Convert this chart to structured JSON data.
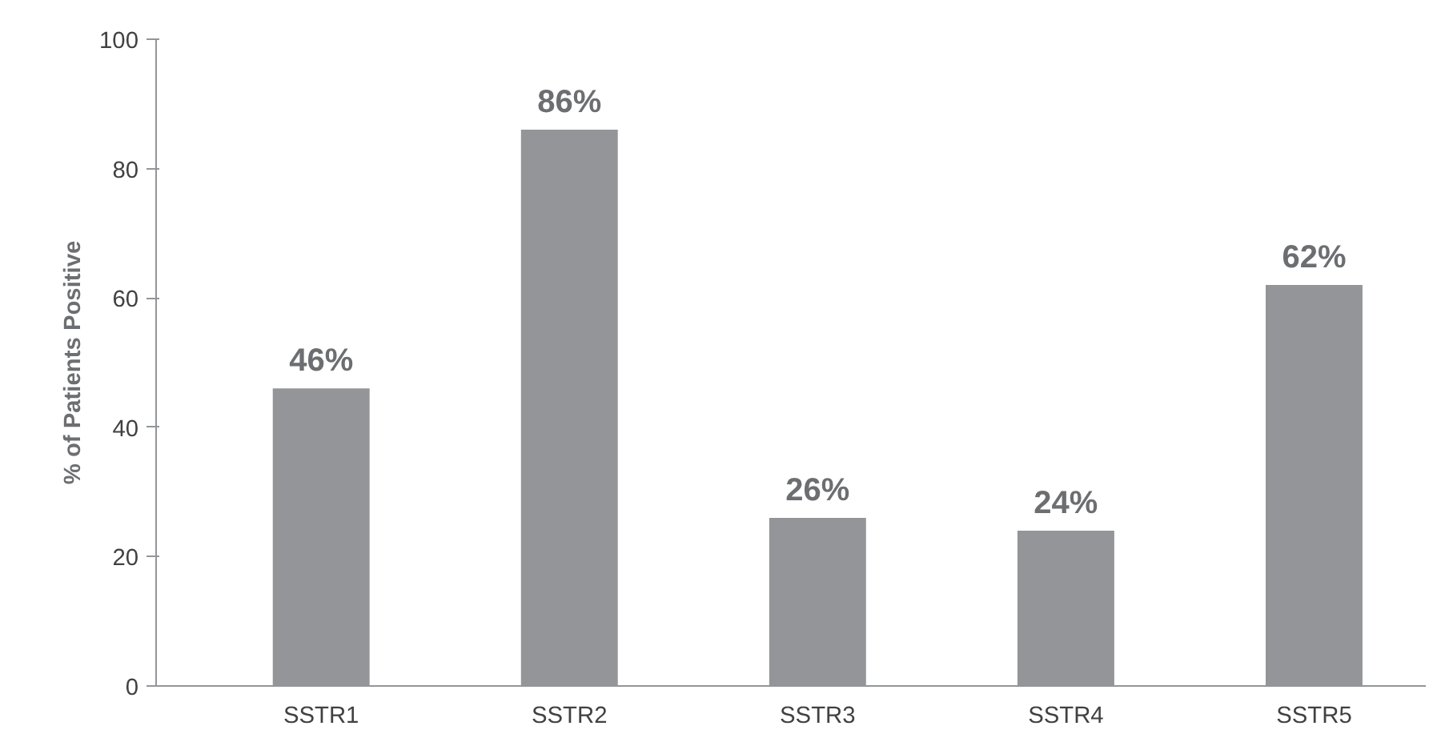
{
  "chart_data": {
    "type": "bar",
    "ylabel": "% of Patients Positive",
    "categories": [
      "SSTR1",
      "SSTR2",
      "SSTR3",
      "SSTR4",
      "SSTR5"
    ],
    "values": [
      46,
      86,
      26,
      24,
      62
    ],
    "value_labels": [
      "46%",
      "86%",
      "26%",
      "24%",
      "62%"
    ],
    "color": "#939598",
    "ylim": [
      0,
      100
    ],
    "yticks": [
      0,
      20,
      40,
      60,
      80,
      100
    ],
    "grid": false
  }
}
